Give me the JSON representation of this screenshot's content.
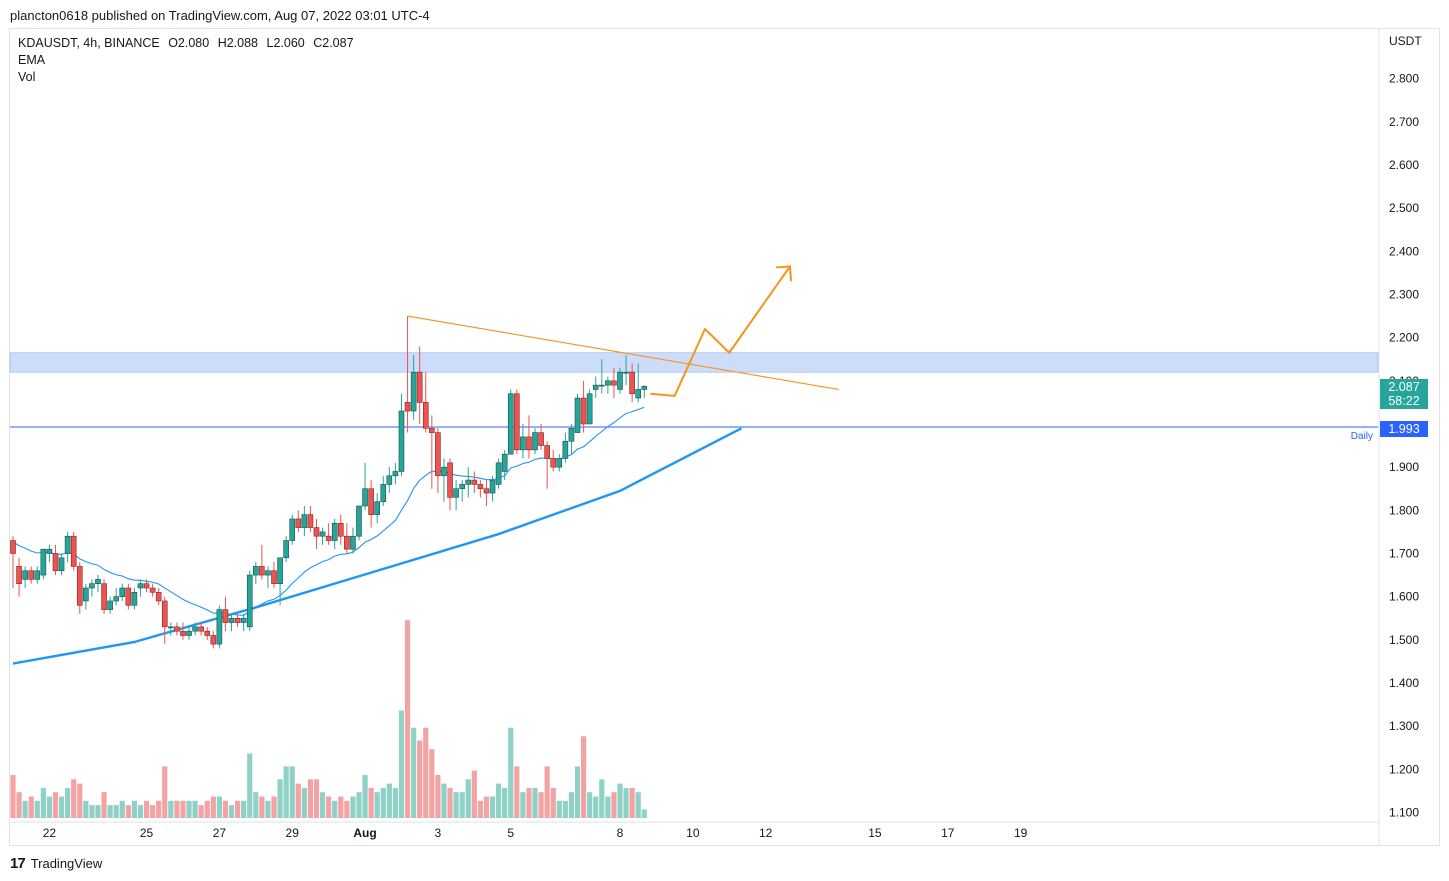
{
  "header": {
    "published": "plancton0618 published on TradingView.com, Aug 07, 2022 03:01 UTC-4"
  },
  "legend": {
    "symbol": "KDAUSDT, 4h, BINANCE",
    "open": "O2.080",
    "high": "H2.088",
    "low": "L2.060",
    "close": "C2.087",
    "ema_label": "EMA",
    "vol_label": "Vol"
  },
  "axis": {
    "currency": "USDT",
    "y_ticks": [
      "2.800",
      "2.700",
      "2.600",
      "2.500",
      "2.400",
      "2.300",
      "2.200",
      "2.100",
      "1.900",
      "1.800",
      "1.700",
      "1.600",
      "1.500",
      "1.400",
      "1.300",
      "1.200",
      "1.100"
    ],
    "x_ticks": [
      "22",
      "25",
      "27",
      "29",
      "Aug",
      "3",
      "5",
      "8",
      "10",
      "12",
      "15",
      "17",
      "19"
    ]
  },
  "price_tags": {
    "last_price": "2.087",
    "countdown": "58:22",
    "daily_level": "1.993",
    "daily_label": "Daily"
  },
  "footer": {
    "brand": "TradingView",
    "logo_glyph": "17"
  },
  "colors": {
    "up": "#26a69a",
    "down": "#ef5350",
    "vol_up": "#8fd1c7",
    "vol_down": "#f3a3a3",
    "ema": "#2196f3",
    "trend": "#f7931e",
    "zone": "#bbd0f7",
    "level": "#2962ff"
  },
  "chart_data": {
    "type": "candlestick",
    "symbol": "KDAUSDT",
    "timeframe": "4h",
    "exchange": "BINANCE",
    "ylim": [
      1.08,
      2.85
    ],
    "candles": [
      {
        "t": 0,
        "o": 1.73,
        "h": 1.74,
        "l": 1.62,
        "c": 1.7,
        "v": 0.1
      },
      {
        "t": 1,
        "o": 1.67,
        "h": 1.69,
        "l": 1.6,
        "c": 1.63,
        "v": 0.06
      },
      {
        "t": 2,
        "o": 1.64,
        "h": 1.67,
        "l": 1.62,
        "c": 1.66,
        "v": 0.04
      },
      {
        "t": 3,
        "o": 1.66,
        "h": 1.67,
        "l": 1.63,
        "c": 1.64,
        "v": 0.05
      },
      {
        "t": 4,
        "o": 1.64,
        "h": 1.67,
        "l": 1.63,
        "c": 1.66,
        "v": 0.04
      },
      {
        "t": 5,
        "o": 1.65,
        "h": 1.71,
        "l": 1.64,
        "c": 1.71,
        "v": 0.07
      },
      {
        "t": 6,
        "o": 1.7,
        "h": 1.72,
        "l": 1.68,
        "c": 1.71,
        "v": 0.05
      },
      {
        "t": 7,
        "o": 1.7,
        "h": 1.72,
        "l": 1.65,
        "c": 1.66,
        "v": 0.06
      },
      {
        "t": 8,
        "o": 1.66,
        "h": 1.7,
        "l": 1.65,
        "c": 1.69,
        "v": 0.05
      },
      {
        "t": 9,
        "o": 1.7,
        "h": 1.75,
        "l": 1.68,
        "c": 1.74,
        "v": 0.07
      },
      {
        "t": 10,
        "o": 1.74,
        "h": 1.75,
        "l": 1.66,
        "c": 1.67,
        "v": 0.09
      },
      {
        "t": 11,
        "o": 1.67,
        "h": 1.68,
        "l": 1.56,
        "c": 1.58,
        "v": 0.08
      },
      {
        "t": 12,
        "o": 1.59,
        "h": 1.63,
        "l": 1.57,
        "c": 1.62,
        "v": 0.04
      },
      {
        "t": 13,
        "o": 1.62,
        "h": 1.64,
        "l": 1.6,
        "c": 1.63,
        "v": 0.03
      },
      {
        "t": 14,
        "o": 1.63,
        "h": 1.65,
        "l": 1.61,
        "c": 1.64,
        "v": 0.03
      },
      {
        "t": 15,
        "o": 1.63,
        "h": 1.64,
        "l": 1.56,
        "c": 1.57,
        "v": 0.06
      },
      {
        "t": 16,
        "o": 1.57,
        "h": 1.6,
        "l": 1.56,
        "c": 1.59,
        "v": 0.03
      },
      {
        "t": 17,
        "o": 1.59,
        "h": 1.62,
        "l": 1.58,
        "c": 1.6,
        "v": 0.03
      },
      {
        "t": 18,
        "o": 1.6,
        "h": 1.63,
        "l": 1.59,
        "c": 1.62,
        "v": 0.04
      },
      {
        "t": 19,
        "o": 1.62,
        "h": 1.63,
        "l": 1.57,
        "c": 1.58,
        "v": 0.03
      },
      {
        "t": 20,
        "o": 1.58,
        "h": 1.62,
        "l": 1.57,
        "c": 1.61,
        "v": 0.04
      },
      {
        "t": 21,
        "o": 1.62,
        "h": 1.64,
        "l": 1.6,
        "c": 1.63,
        "v": 0.03
      },
      {
        "t": 22,
        "o": 1.63,
        "h": 1.64,
        "l": 1.61,
        "c": 1.62,
        "v": 0.04
      },
      {
        "t": 23,
        "o": 1.62,
        "h": 1.63,
        "l": 1.6,
        "c": 1.61,
        "v": 0.03
      },
      {
        "t": 24,
        "o": 1.61,
        "h": 1.62,
        "l": 1.58,
        "c": 1.59,
        "v": 0.04
      },
      {
        "t": 25,
        "o": 1.59,
        "h": 1.6,
        "l": 1.49,
        "c": 1.53,
        "v": 0.12
      },
      {
        "t": 26,
        "o": 1.53,
        "h": 1.54,
        "l": 1.51,
        "c": 1.53,
        "v": 0.04
      },
      {
        "t": 27,
        "o": 1.53,
        "h": 1.54,
        "l": 1.51,
        "c": 1.52,
        "v": 0.04
      },
      {
        "t": 28,
        "o": 1.52,
        "h": 1.54,
        "l": 1.5,
        "c": 1.51,
        "v": 0.04
      },
      {
        "t": 29,
        "o": 1.51,
        "h": 1.53,
        "l": 1.5,
        "c": 1.52,
        "v": 0.04
      },
      {
        "t": 30,
        "o": 1.52,
        "h": 1.54,
        "l": 1.51,
        "c": 1.53,
        "v": 0.04
      },
      {
        "t": 31,
        "o": 1.53,
        "h": 1.54,
        "l": 1.51,
        "c": 1.52,
        "v": 0.03
      },
      {
        "t": 32,
        "o": 1.52,
        "h": 1.53,
        "l": 1.5,
        "c": 1.51,
        "v": 0.04
      },
      {
        "t": 33,
        "o": 1.51,
        "h": 1.52,
        "l": 1.48,
        "c": 1.49,
        "v": 0.05
      },
      {
        "t": 34,
        "o": 1.49,
        "h": 1.58,
        "l": 1.48,
        "c": 1.57,
        "v": 0.05
      },
      {
        "t": 35,
        "o": 1.57,
        "h": 1.6,
        "l": 1.52,
        "c": 1.54,
        "v": 0.04
      },
      {
        "t": 36,
        "o": 1.54,
        "h": 1.56,
        "l": 1.52,
        "c": 1.55,
        "v": 0.03
      },
      {
        "t": 37,
        "o": 1.55,
        "h": 1.56,
        "l": 1.53,
        "c": 1.54,
        "v": 0.04
      },
      {
        "t": 38,
        "o": 1.54,
        "h": 1.56,
        "l": 1.52,
        "c": 1.55,
        "v": 0.04
      },
      {
        "t": 39,
        "o": 1.53,
        "h": 1.66,
        "l": 1.52,
        "c": 1.65,
        "v": 0.15
      },
      {
        "t": 40,
        "o": 1.65,
        "h": 1.68,
        "l": 1.63,
        "c": 1.67,
        "v": 0.06
      },
      {
        "t": 41,
        "o": 1.67,
        "h": 1.72,
        "l": 1.64,
        "c": 1.65,
        "v": 0.05
      },
      {
        "t": 42,
        "o": 1.65,
        "h": 1.67,
        "l": 1.62,
        "c": 1.66,
        "v": 0.04
      },
      {
        "t": 43,
        "o": 1.66,
        "h": 1.68,
        "l": 1.62,
        "c": 1.63,
        "v": 0.05
      },
      {
        "t": 44,
        "o": 1.63,
        "h": 1.69,
        "l": 1.58,
        "c": 1.69,
        "v": 0.09
      },
      {
        "t": 45,
        "o": 1.69,
        "h": 1.74,
        "l": 1.68,
        "c": 1.73,
        "v": 0.12
      },
      {
        "t": 46,
        "o": 1.73,
        "h": 1.79,
        "l": 1.72,
        "c": 1.78,
        "v": 0.12
      },
      {
        "t": 47,
        "o": 1.78,
        "h": 1.8,
        "l": 1.75,
        "c": 1.76,
        "v": 0.08
      },
      {
        "t": 48,
        "o": 1.76,
        "h": 1.81,
        "l": 1.74,
        "c": 1.79,
        "v": 0.07
      },
      {
        "t": 49,
        "o": 1.79,
        "h": 1.81,
        "l": 1.75,
        "c": 1.76,
        "v": 0.09
      },
      {
        "t": 50,
        "o": 1.76,
        "h": 1.78,
        "l": 1.71,
        "c": 1.74,
        "v": 0.09
      },
      {
        "t": 51,
        "o": 1.74,
        "h": 1.76,
        "l": 1.72,
        "c": 1.75,
        "v": 0.06
      },
      {
        "t": 52,
        "o": 1.74,
        "h": 1.77,
        "l": 1.72,
        "c": 1.73,
        "v": 0.05
      },
      {
        "t": 53,
        "o": 1.73,
        "h": 1.78,
        "l": 1.71,
        "c": 1.77,
        "v": 0.04
      },
      {
        "t": 54,
        "o": 1.77,
        "h": 1.79,
        "l": 1.72,
        "c": 1.74,
        "v": 0.05
      },
      {
        "t": 55,
        "o": 1.74,
        "h": 1.77,
        "l": 1.7,
        "c": 1.71,
        "v": 0.04
      },
      {
        "t": 56,
        "o": 1.71,
        "h": 1.76,
        "l": 1.7,
        "c": 1.74,
        "v": 0.05
      },
      {
        "t": 57,
        "o": 1.74,
        "h": 1.81,
        "l": 1.73,
        "c": 1.81,
        "v": 0.06
      },
      {
        "t": 58,
        "o": 1.81,
        "h": 1.91,
        "l": 1.8,
        "c": 1.85,
        "v": 0.1
      },
      {
        "t": 59,
        "o": 1.85,
        "h": 1.87,
        "l": 1.76,
        "c": 1.79,
        "v": 0.07
      },
      {
        "t": 60,
        "o": 1.79,
        "h": 1.84,
        "l": 1.77,
        "c": 1.82,
        "v": 0.06
      },
      {
        "t": 61,
        "o": 1.82,
        "h": 1.88,
        "l": 1.81,
        "c": 1.86,
        "v": 0.07
      },
      {
        "t": 62,
        "o": 1.86,
        "h": 1.9,
        "l": 1.84,
        "c": 1.88,
        "v": 0.08
      },
      {
        "t": 63,
        "o": 1.88,
        "h": 1.91,
        "l": 1.86,
        "c": 1.89,
        "v": 0.07
      },
      {
        "t": 64,
        "o": 1.89,
        "h": 2.07,
        "l": 1.88,
        "c": 2.03,
        "v": 0.25
      },
      {
        "t": 65,
        "o": 2.05,
        "h": 2.25,
        "l": 1.98,
        "c": 2.03,
        "v": 0.46
      },
      {
        "t": 66,
        "o": 2.03,
        "h": 2.16,
        "l": 2.01,
        "c": 2.12,
        "v": 0.21
      },
      {
        "t": 67,
        "o": 2.12,
        "h": 2.18,
        "l": 2.0,
        "c": 2.05,
        "v": 0.18
      },
      {
        "t": 68,
        "o": 2.05,
        "h": 2.12,
        "l": 1.98,
        "c": 1.99,
        "v": 0.21
      },
      {
        "t": 69,
        "o": 1.99,
        "h": 2.02,
        "l": 1.85,
        "c": 1.98,
        "v": 0.16
      },
      {
        "t": 70,
        "o": 1.98,
        "h": 1.99,
        "l": 1.84,
        "c": 1.88,
        "v": 0.1
      },
      {
        "t": 71,
        "o": 1.88,
        "h": 1.92,
        "l": 1.82,
        "c": 1.9,
        "v": 0.08
      },
      {
        "t": 72,
        "o": 1.91,
        "h": 1.92,
        "l": 1.8,
        "c": 1.83,
        "v": 0.07
      },
      {
        "t": 73,
        "o": 1.83,
        "h": 1.87,
        "l": 1.8,
        "c": 1.85,
        "v": 0.06
      },
      {
        "t": 74,
        "o": 1.85,
        "h": 1.87,
        "l": 1.82,
        "c": 1.86,
        "v": 0.06
      },
      {
        "t": 75,
        "o": 1.86,
        "h": 1.9,
        "l": 1.83,
        "c": 1.87,
        "v": 0.09
      },
      {
        "t": 76,
        "o": 1.87,
        "h": 1.89,
        "l": 1.84,
        "c": 1.86,
        "v": 0.11
      },
      {
        "t": 77,
        "o": 1.86,
        "h": 1.87,
        "l": 1.83,
        "c": 1.85,
        "v": 0.04
      },
      {
        "t": 78,
        "o": 1.85,
        "h": 1.87,
        "l": 1.81,
        "c": 1.84,
        "v": 0.05
      },
      {
        "t": 79,
        "o": 1.84,
        "h": 1.88,
        "l": 1.82,
        "c": 1.87,
        "v": 0.05
      },
      {
        "t": 80,
        "o": 1.86,
        "h": 1.92,
        "l": 1.85,
        "c": 1.91,
        "v": 0.08
      },
      {
        "t": 81,
        "o": 1.89,
        "h": 1.94,
        "l": 1.87,
        "c": 1.93,
        "v": 0.07
      },
      {
        "t": 82,
        "o": 1.93,
        "h": 2.08,
        "l": 1.93,
        "c": 2.07,
        "v": 0.21
      },
      {
        "t": 83,
        "o": 2.07,
        "h": 2.08,
        "l": 1.93,
        "c": 1.94,
        "v": 0.12
      },
      {
        "t": 84,
        "o": 1.94,
        "h": 2.0,
        "l": 1.92,
        "c": 1.97,
        "v": 0.06
      },
      {
        "t": 85,
        "o": 1.97,
        "h": 2.02,
        "l": 1.92,
        "c": 1.94,
        "v": 0.07
      },
      {
        "t": 86,
        "o": 1.94,
        "h": 1.99,
        "l": 1.93,
        "c": 1.98,
        "v": 0.07
      },
      {
        "t": 87,
        "o": 1.98,
        "h": 2.0,
        "l": 1.94,
        "c": 1.95,
        "v": 0.06
      },
      {
        "t": 88,
        "o": 1.95,
        "h": 1.96,
        "l": 1.85,
        "c": 1.92,
        "v": 0.12
      },
      {
        "t": 89,
        "o": 1.92,
        "h": 1.94,
        "l": 1.89,
        "c": 1.9,
        "v": 0.07
      },
      {
        "t": 90,
        "o": 1.9,
        "h": 1.93,
        "l": 1.89,
        "c": 1.92,
        "v": 0.04
      },
      {
        "t": 91,
        "o": 1.92,
        "h": 1.98,
        "l": 1.91,
        "c": 1.96,
        "v": 0.04
      },
      {
        "t": 92,
        "o": 1.96,
        "h": 2.0,
        "l": 1.93,
        "c": 1.99,
        "v": 0.06
      },
      {
        "t": 93,
        "o": 1.98,
        "h": 2.07,
        "l": 1.98,
        "c": 2.06,
        "v": 0.12
      },
      {
        "t": 94,
        "o": 2.06,
        "h": 2.1,
        "l": 1.98,
        "c": 2.0,
        "v": 0.19
      },
      {
        "t": 95,
        "o": 2.0,
        "h": 2.08,
        "l": 2.0,
        "c": 2.07,
        "v": 0.06
      },
      {
        "t": 96,
        "o": 2.08,
        "h": 2.11,
        "l": 2.06,
        "c": 2.09,
        "v": 0.05
      },
      {
        "t": 97,
        "o": 2.09,
        "h": 2.15,
        "l": 2.07,
        "c": 2.09,
        "v": 0.09
      },
      {
        "t": 98,
        "o": 2.09,
        "h": 2.11,
        "l": 2.07,
        "c": 2.1,
        "v": 0.05
      },
      {
        "t": 99,
        "o": 2.1,
        "h": 2.13,
        "l": 2.06,
        "c": 2.09,
        "v": 0.06
      },
      {
        "t": 100,
        "o": 2.08,
        "h": 2.13,
        "l": 2.07,
        "c": 2.12,
        "v": 0.08
      },
      {
        "t": 101,
        "o": 2.12,
        "h": 2.16,
        "l": 2.09,
        "c": 2.12,
        "v": 0.07
      },
      {
        "t": 102,
        "o": 2.12,
        "h": 2.14,
        "l": 2.05,
        "c": 2.07,
        "v": 0.07
      },
      {
        "t": 103,
        "o": 2.06,
        "h": 2.14,
        "l": 2.05,
        "c": 2.08,
        "v": 0.06
      },
      {
        "t": 104,
        "o": 2.08,
        "h": 2.09,
        "l": 2.06,
        "c": 2.087,
        "v": 0.02
      }
    ],
    "ema_short_start": 1.73,
    "ema_long": [
      {
        "t": 0,
        "v": 1.445
      },
      {
        "t": 20,
        "v": 1.495
      },
      {
        "t": 40,
        "v": 1.575
      },
      {
        "t": 60,
        "v": 1.66
      },
      {
        "t": 80,
        "v": 1.745
      },
      {
        "t": 100,
        "v": 1.845
      },
      {
        "t": 120,
        "v": 1.99
      }
    ],
    "resistance_zone": [
      2.12,
      2.165
    ],
    "daily_level": 1.993,
    "trendline": [
      {
        "t": 65,
        "v": 2.25
      },
      {
        "t": 136,
        "v": 2.08
      }
    ],
    "projection": [
      {
        "t": 105,
        "v": 2.07
      },
      {
        "t": 109,
        "v": 2.065
      },
      {
        "t": 114,
        "v": 2.22
      },
      {
        "t": 118,
        "v": 2.165
      },
      {
        "t": 128,
        "v": 2.365
      }
    ],
    "x_tick_positions": [
      {
        "label": "22",
        "t": 6
      },
      {
        "label": "25",
        "t": 22
      },
      {
        "label": "27",
        "t": 34
      },
      {
        "label": "29",
        "t": 46
      },
      {
        "label": "Aug",
        "t": 58
      },
      {
        "label": "3",
        "t": 70
      },
      {
        "label": "5",
        "t": 82
      },
      {
        "label": "8",
        "t": 100
      },
      {
        "label": "10",
        "t": 112
      },
      {
        "label": "12",
        "t": 124
      },
      {
        "label": "15",
        "t": 142
      },
      {
        "label": "17",
        "t": 154
      },
      {
        "label": "19",
        "t": 166
      }
    ]
  }
}
